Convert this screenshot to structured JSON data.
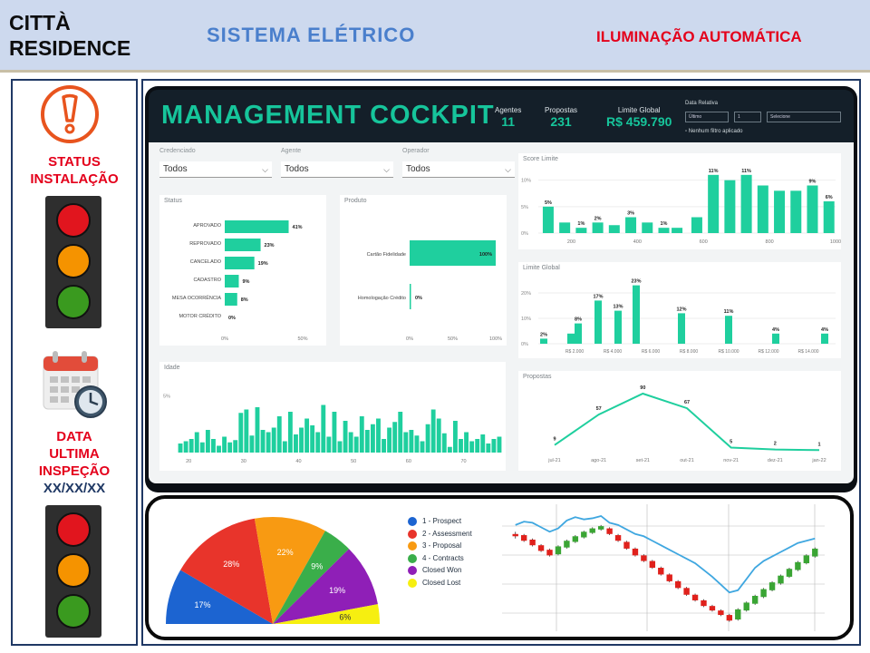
{
  "header": {
    "brand_line1": "CITTÀ",
    "brand_line2": "RESIDENCE",
    "system_title": "SISTEMA  ELÉTRICO",
    "automation_label": "ILUMINAÇÃO AUTOMÁTICA"
  },
  "left_panel": {
    "status_line1": "STATUS",
    "status_line2": "INSTALAÇÃO",
    "inspection_line1": "DATA",
    "inspection_line2": "ULTIMA",
    "inspection_line3": "INSPEÇÃO",
    "inspection_date": "XX/XX/XX",
    "icons": [
      "warning-icon",
      "calendar-clock-icon"
    ],
    "lamp_colors": {
      "red": "#e1151e",
      "amber": "#f59300",
      "green": "#3a9a1f"
    }
  },
  "cockpit": {
    "title": "MANAGEMENT COCKPIT",
    "kpis": [
      {
        "label": "Agentes",
        "value": "11"
      },
      {
        "label": "Propostas",
        "value": "231"
      },
      {
        "label": "Limite Global",
        "value": "R$ 459.790"
      }
    ],
    "relative_date_label": "Data Relativa",
    "relative_date_unit": "Último",
    "relative_date_count": "1",
    "relative_date_select": "Selecione",
    "no_filter_label": "Nenhum filtro aplicado",
    "filters": [
      {
        "label": "Credenciado",
        "value": "Todos"
      },
      {
        "label": "Agente",
        "value": "Todos"
      },
      {
        "label": "Operador",
        "value": "Todos"
      }
    ],
    "accent_color": "#1fcf9e"
  },
  "chart_data": [
    {
      "type": "bar",
      "title": "Status",
      "orientation": "horizontal",
      "categories": [
        "APROVADO",
        "REPROVADO",
        "CANCELADO",
        "CADASTRO",
        "MESA OCORRÊNCIA",
        "MOTOR CRÉDITO"
      ],
      "values": [
        41,
        23,
        19,
        9,
        8,
        0
      ],
      "value_labels": [
        "41%",
        "23%",
        "19%",
        "9%",
        "8%",
        "0%"
      ],
      "x_ticks": [
        "0%",
        "50%"
      ],
      "xlim": [
        0,
        50
      ]
    },
    {
      "type": "bar",
      "title": "Produto",
      "orientation": "horizontal",
      "categories": [
        "Cartão Fidelidade",
        "Homologação Crédito"
      ],
      "values": [
        100,
        0
      ],
      "value_labels": [
        "100%",
        "0%"
      ],
      "x_ticks": [
        "0%",
        "50%",
        "100%"
      ],
      "xlim": [
        0,
        100
      ]
    },
    {
      "type": "bar",
      "title": "Score Limite",
      "x_ticks": [
        "200",
        "400",
        "600",
        "800",
        "1000"
      ],
      "y_ticks": [
        "0%",
        "5%",
        "10%"
      ],
      "ylim": [
        0,
        12
      ],
      "x": [
        130,
        180,
        230,
        280,
        330,
        380,
        430,
        480,
        520,
        580,
        630,
        680,
        730,
        780,
        830,
        880,
        930,
        980
      ],
      "values": [
        5,
        2,
        1,
        2,
        1.5,
        3,
        2,
        1,
        1,
        3,
        11,
        10,
        11,
        9,
        8,
        8,
        9,
        6
      ],
      "data_labels": [
        "5%",
        "",
        "1%",
        "2%",
        "",
        "3%",
        "",
        "1%",
        "",
        "",
        "11%",
        "",
        "11%",
        "",
        "",
        "",
        "9%",
        "6%"
      ]
    },
    {
      "type": "bar",
      "title": "Limite Global",
      "x_ticks": [
        "R$ 2.000",
        "R$ 4.000",
        "R$ 6.000",
        "R$ 8.000",
        "R$ 10.000",
        "R$ 12.000",
        "R$ 14.000"
      ],
      "y_ticks": [
        "0%",
        "10%",
        "20%"
      ],
      "ylim": [
        0,
        25
      ],
      "values": [
        2,
        4,
        8,
        17,
        13,
        23,
        12,
        11,
        4,
        4
      ],
      "data_labels": [
        "2%",
        "",
        "8%",
        "17%",
        "13%",
        "23%",
        "12%",
        "11%",
        "4%",
        "4%"
      ]
    },
    {
      "type": "bar",
      "title": "Idade",
      "x_ticks": [
        "20",
        "30",
        "40",
        "50",
        "60",
        "70"
      ],
      "y_ticks": [
        "5%"
      ],
      "x_range": [
        18,
        77
      ],
      "ylim": [
        0,
        6
      ],
      "values": [
        0.8,
        1.0,
        1.2,
        1.8,
        0.9,
        2.0,
        1.2,
        0.6,
        1.4,
        0.9,
        1.1,
        3.5,
        3.8,
        1.5,
        4.0,
        2.0,
        1.8,
        2.2,
        3.2,
        1.0,
        3.6,
        1.6,
        2.2,
        3.0,
        2.4,
        1.8,
        4.2,
        1.4,
        3.6,
        1.0,
        2.8,
        1.8,
        1.4,
        3.2,
        2.0,
        2.5,
        3.0,
        1.2,
        2.2,
        2.7,
        3.6,
        1.8,
        2.0,
        1.5,
        1.0,
        2.5,
        3.8,
        3.0,
        1.7,
        0.5,
        2.8,
        1.2,
        1.8,
        1.0,
        1.2,
        1.6,
        0.8,
        1.2,
        1.4
      ]
    },
    {
      "type": "line",
      "title": "Propostas",
      "categories": [
        "jul-21",
        "ago-21",
        "set-21",
        "out-21",
        "nov-21",
        "dez-21",
        "jan-22"
      ],
      "values": [
        9,
        57,
        90,
        67,
        5,
        2,
        1
      ],
      "ylim": [
        0,
        100
      ]
    },
    {
      "type": "pie",
      "shape": "half-donut",
      "categories": [
        "1 - Prospect",
        "2 - Assessment",
        "3 - Proposal",
        "4 - Contracts",
        "Closed Won",
        "Closed Lost"
      ],
      "values": [
        17,
        28,
        22,
        9,
        19,
        6
      ],
      "value_labels": [
        "17%",
        "28%",
        "22%",
        "9%",
        "19%",
        "6%"
      ],
      "colors": [
        "#1c64d1",
        "#e8342b",
        "#f89a12",
        "#3aae4a",
        "#8f1fb7",
        "#f6ef10"
      ]
    },
    {
      "type": "line",
      "subtype": "candlestick",
      "candles": [
        [
          80,
          82,
          76,
          78
        ],
        [
          79,
          80,
          73,
          74
        ],
        [
          75,
          76,
          69,
          70
        ],
        [
          70,
          71,
          64,
          65
        ],
        [
          66,
          67,
          60,
          61
        ],
        [
          62,
          70,
          61,
          69
        ],
        [
          68,
          75,
          67,
          74
        ],
        [
          73,
          79,
          72,
          78
        ],
        [
          77,
          83,
          76,
          82
        ],
        [
          81,
          86,
          80,
          85
        ],
        [
          84,
          88,
          83,
          87
        ],
        [
          85,
          86,
          79,
          80
        ],
        [
          79,
          80,
          73,
          74
        ],
        [
          73,
          74,
          66,
          67
        ],
        [
          67,
          68,
          60,
          61
        ],
        [
          61,
          62,
          55,
          56
        ],
        [
          56,
          57,
          49,
          50
        ],
        [
          50,
          51,
          43,
          44
        ],
        [
          44,
          45,
          37,
          38
        ],
        [
          38,
          39,
          31,
          32
        ],
        [
          32,
          33,
          25,
          26
        ],
        [
          26,
          27,
          20,
          21
        ],
        [
          21,
          22,
          15,
          16
        ],
        [
          16,
          17,
          11,
          12
        ],
        [
          12,
          13,
          7,
          8
        ],
        [
          8,
          9,
          2,
          3
        ],
        [
          4,
          14,
          3,
          13
        ],
        [
          12,
          20,
          11,
          19
        ],
        [
          18,
          26,
          17,
          25
        ],
        [
          24,
          32,
          23,
          31
        ],
        [
          30,
          38,
          29,
          37
        ],
        [
          36,
          44,
          35,
          43
        ],
        [
          42,
          50,
          41,
          49
        ],
        [
          48,
          56,
          47,
          55
        ],
        [
          54,
          62,
          53,
          61
        ],
        [
          60,
          68,
          59,
          67
        ]
      ],
      "series": [
        {
          "name": "",
          "values": [
            88,
            91,
            90,
            86,
            82,
            85,
            92,
            95,
            93,
            94,
            96,
            90,
            88,
            84,
            80,
            78,
            74,
            70,
            66,
            62,
            58,
            54,
            48,
            42,
            35,
            28,
            30,
            40,
            50,
            56,
            60,
            64,
            68,
            72,
            74,
            76
          ]
        }
      ],
      "colors": {
        "up": "#3aa534",
        "down": "#e0211c",
        "line": "#3fa7e0"
      }
    }
  ]
}
